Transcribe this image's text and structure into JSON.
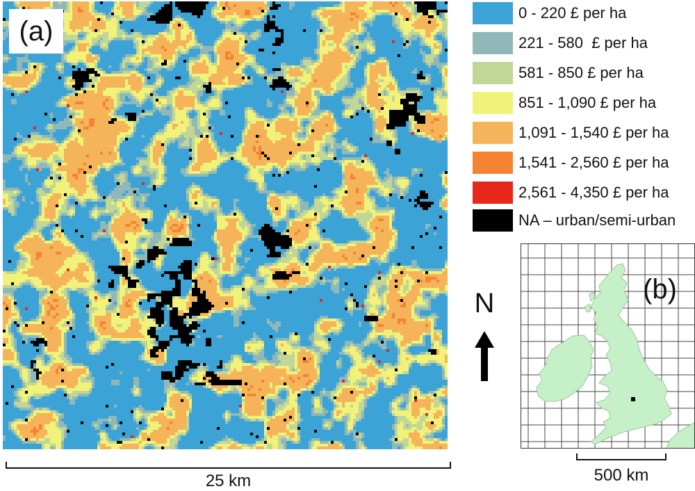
{
  "panel_a": {
    "label": "(a)",
    "class_colors": [
      "#3ba3d6",
      "#91b8b8",
      "#c0d795",
      "#f0f27a",
      "#f5b45a",
      "#f48432",
      "#e8271c",
      "#000000"
    ],
    "scale_label": "25 km"
  },
  "legend": {
    "items": [
      {
        "label": "0 - 220 £ per ha",
        "color": "#3ba3d6"
      },
      {
        "label": "221 - 580  £ per ha",
        "color": "#91b8b8"
      },
      {
        "label": "581 - 850 £ per ha",
        "color": "#c0d795"
      },
      {
        "label": "851 - 1,090 £ per ha",
        "color": "#f0f27a"
      },
      {
        "label": "1,091 - 1,540 £ per ha",
        "color": "#f5b45a"
      },
      {
        "label": "1,541 - 2,560 £ per ha",
        "color": "#f48432"
      },
      {
        "label": "2,561 - 4,350 £ per ha",
        "color": "#e8271c"
      },
      {
        "label": "NA – urban/semi-urban",
        "color": "#000000"
      }
    ]
  },
  "north_arrow": {
    "label": "N"
  },
  "panel_b": {
    "label": "(b)",
    "land_color": "#c6f0c8",
    "scale_label": "500 km"
  }
}
